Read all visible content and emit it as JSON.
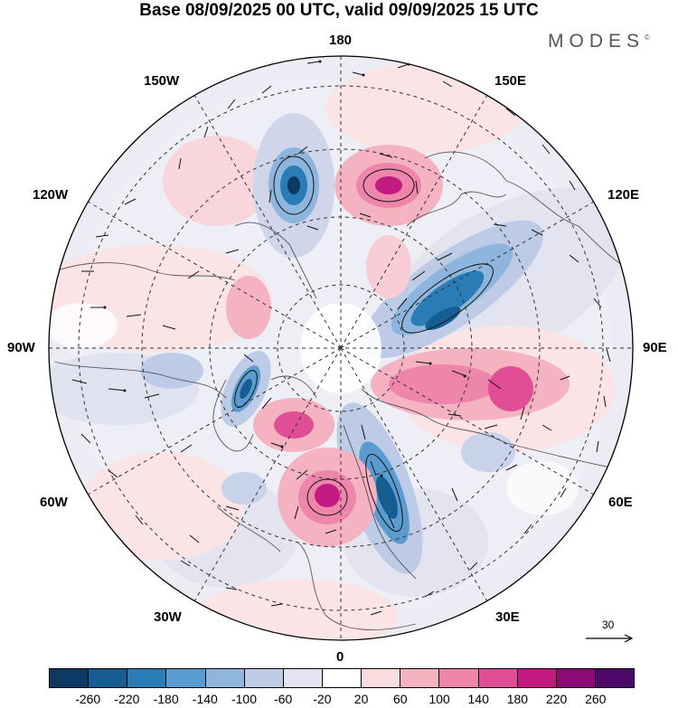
{
  "title": "Base 08/09/2025 00 UTC, valid 09/09/2025 15 UTC",
  "brand": "MODES",
  "brand_mark": "©",
  "longitude_labels": {
    "top": "180",
    "bottom": "0",
    "left": "90W",
    "right": "90E",
    "upper_left": "150W",
    "upper_right": "150E",
    "mid_upper_left": "120W",
    "mid_upper_right": "120E",
    "mid_lower_left": "60W",
    "mid_lower_right": "60E",
    "lower_left": "30W",
    "lower_right": "30E"
  },
  "reference_vector": "30",
  "colorbar": {
    "colors": [
      "#0b3a63",
      "#165e91",
      "#2a7cb7",
      "#5b9cd0",
      "#8db5dd",
      "#bdcbe6",
      "#e3e3f2",
      "#ffffff",
      "#fadcdf",
      "#f5b3c1",
      "#ee85ab",
      "#e04f96",
      "#c21a7e",
      "#8c0a74",
      "#4e0a6b"
    ],
    "ticks": [
      "-260",
      "-220",
      "-180",
      "-140",
      "-100",
      "-60",
      "-20",
      "20",
      "60",
      "100",
      "140",
      "180",
      "220",
      "260"
    ]
  }
}
